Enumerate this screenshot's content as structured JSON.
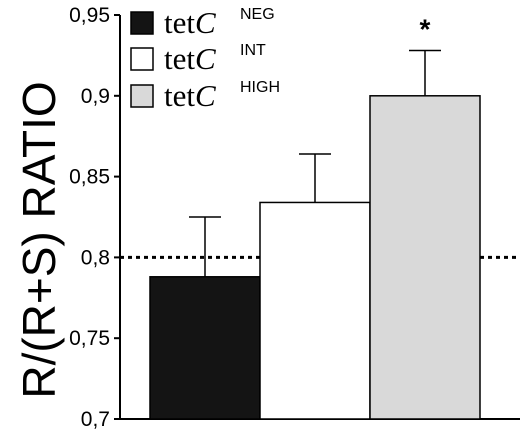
{
  "chart_data": {
    "type": "bar",
    "ylabel": "R/(R+S) RATIO",
    "ylim": [
      0.7,
      0.95
    ],
    "yticks": [
      "0,7",
      "0,75",
      "0,8",
      "0,85",
      "0,9",
      "0,95"
    ],
    "reference_line": 0.8,
    "legend_placement": "top-left",
    "series": [
      {
        "name_prefix": "tet",
        "name_italic": "C",
        "name_sup": "NEG",
        "value": 0.788,
        "error_upper": 0.825,
        "fill": "#141414",
        "annotation": ""
      },
      {
        "name_prefix": "tet",
        "name_italic": "C",
        "name_sup": "INT",
        "value": 0.834,
        "error_upper": 0.864,
        "fill": "#ffffff",
        "annotation": ""
      },
      {
        "name_prefix": "tet",
        "name_italic": "C",
        "name_sup": "HIGH",
        "value": 0.9,
        "error_upper": 0.928,
        "fill": "#d9d9d9",
        "annotation": "*"
      }
    ]
  }
}
